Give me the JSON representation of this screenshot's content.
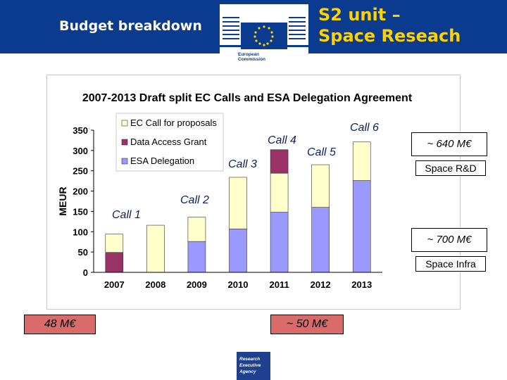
{
  "header": {
    "title": "Budget breakdown",
    "unit_title_line1": "S2 unit –",
    "unit_title_line2": "Space Reseach",
    "logo_text_line1": "European",
    "logo_text_line2": "Commission"
  },
  "colors": {
    "header_bg": "#0b3b8f",
    "unit_title": "#ffd200",
    "ec_call": "#ffffcc",
    "data_access": "#993366",
    "esa": "#9999ff"
  },
  "chart_data": {
    "type": "bar",
    "stacked": true,
    "title": "2007-2013 Draft split EC Calls and ESA Delegation Agreement",
    "ylabel": "MEUR",
    "xlabel": "",
    "ylim": [
      0,
      350
    ],
    "yticks": [
      0,
      50,
      100,
      150,
      200,
      250,
      300,
      350
    ],
    "grid": false,
    "legend_position": "top-left",
    "categories": [
      "2007",
      "2008",
      "2009",
      "2010",
      "2011",
      "2012",
      "2013"
    ],
    "series": [
      {
        "name": "ESA Delegation",
        "color": "#9999ff",
        "values": [
          0,
          0,
          76,
          107,
          148,
          160,
          226
        ]
      },
      {
        "name": "Data Access Grant",
        "color": "#993366",
        "values": [
          49,
          0,
          0,
          0,
          0,
          0,
          0
        ]
      },
      {
        "name": "EC Call for proposals",
        "color": "#ffffcc",
        "values": [
          45,
          116,
          60,
          127,
          96,
          105,
          95
        ]
      }
    ],
    "legend_order": [
      "EC Call for proposals",
      "Data Access Grant",
      "ESA Delegation"
    ],
    "extra_segments": [
      {
        "category": "2011",
        "series": "Data Access Grant",
        "bottom": 244,
        "top": 302
      }
    ]
  },
  "annotations": {
    "call1": "Call 1",
    "call2": "Call 2",
    "call3": "Call 3",
    "call4": "Call 4",
    "call5": "Call 5",
    "call6": "Call 6",
    "rd_value": "~ 640 M€",
    "rd_label": "Space R&D",
    "infra_value": "~ 700 M€",
    "infra_label": "Space Infra",
    "left_total": "48 M€",
    "mid_total": "~ 50 M€"
  },
  "footer": {
    "rea_line1": "Research",
    "rea_line2": "Executive",
    "rea_line3": "Agency"
  }
}
